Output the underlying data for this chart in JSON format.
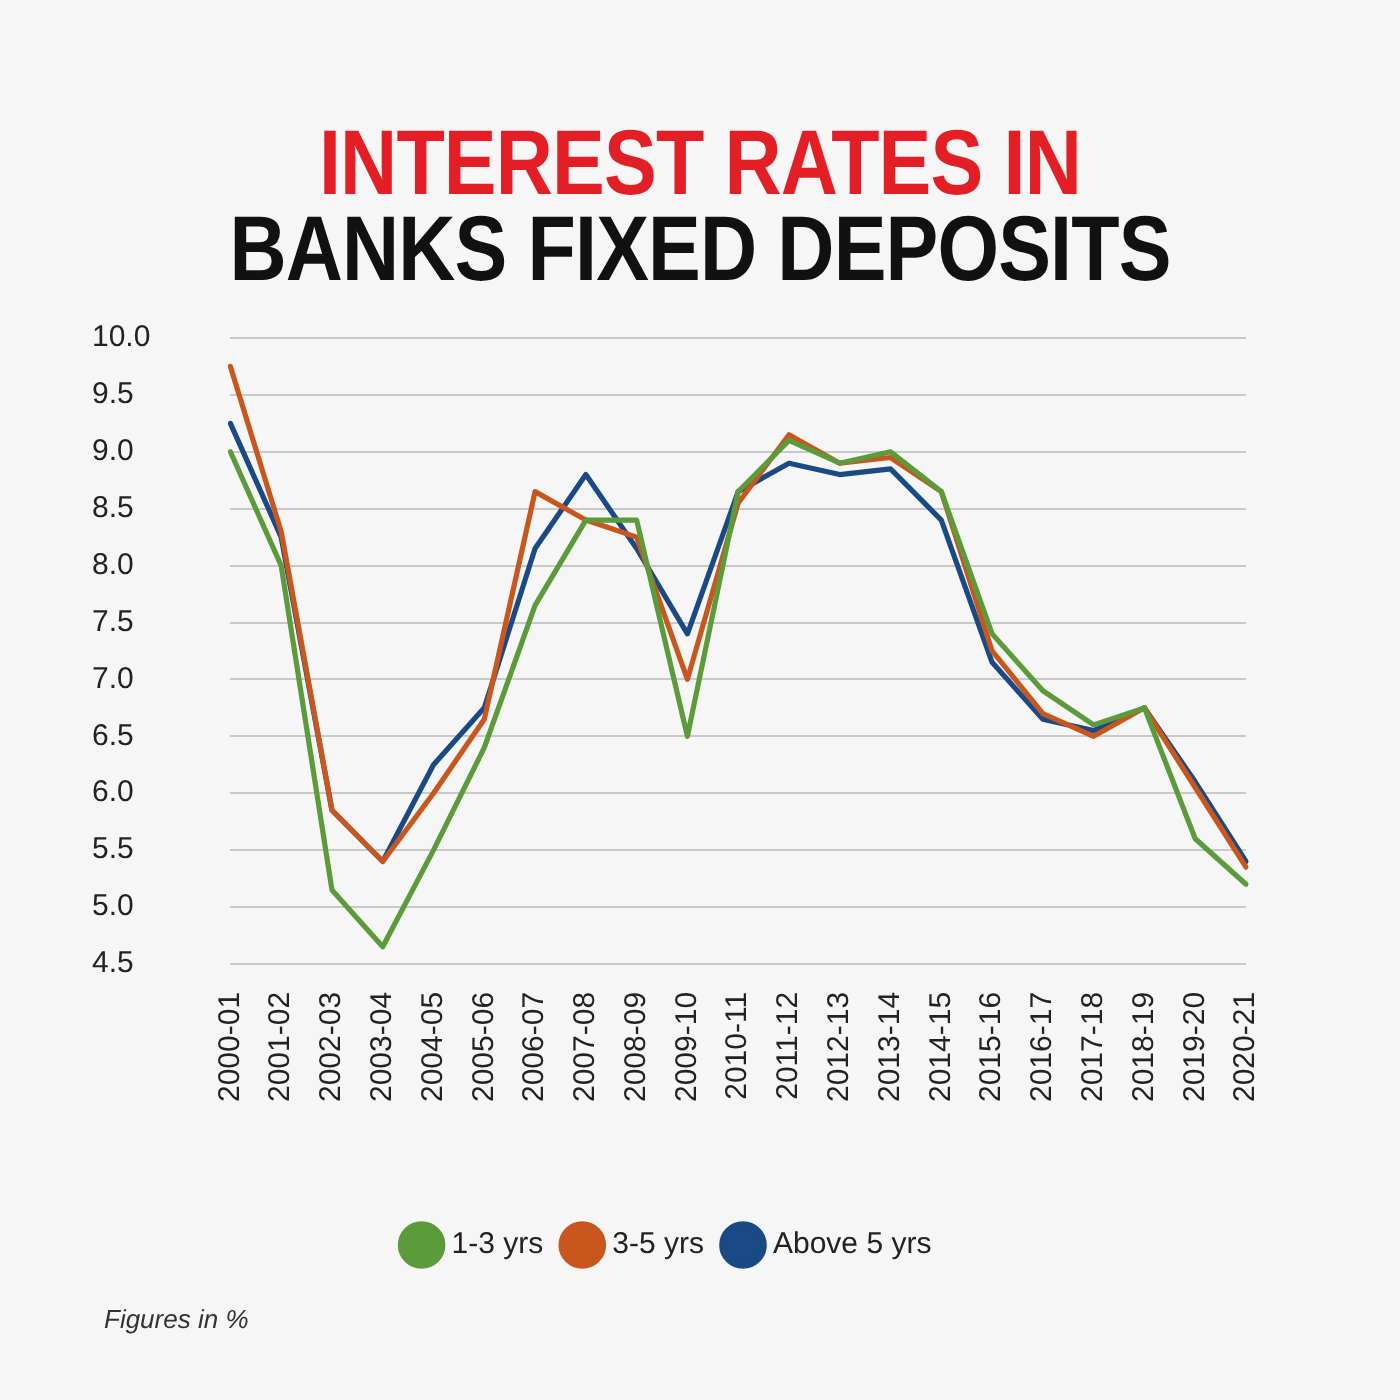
{
  "chart_data": {
    "type": "line",
    "title": "INTEREST RATES IN\nBANKS FIXED DEPOSITS",
    "categories": [
      "2000-01",
      "2001-02",
      "2002-03",
      "2003-04",
      "2004-05",
      "2005-06",
      "2006-07",
      "2007-08",
      "2008-09",
      "2009-10",
      "2010-11",
      "2011-12",
      "2012-13",
      "2013-14",
      "2014-15",
      "2015-16",
      "2016-17",
      "2017-18",
      "2018-19",
      "2019-20",
      "2020-21"
    ],
    "series": [
      {
        "name": "1-3 yrs",
        "color": "#5b9b3a",
        "values": [
          9.0,
          8.0,
          5.15,
          4.65,
          5.5,
          6.4,
          7.65,
          8.4,
          8.4,
          6.5,
          8.65,
          9.1,
          8.9,
          9.0,
          8.65,
          7.4,
          6.9,
          6.6,
          6.75,
          5.6,
          5.2
        ]
      },
      {
        "name": "3-5 yrs",
        "color": "#c8561d",
        "values": [
          9.75,
          8.3,
          5.85,
          5.4,
          6.0,
          6.65,
          8.65,
          8.4,
          8.25,
          7.0,
          8.55,
          9.15,
          8.9,
          8.95,
          8.65,
          7.25,
          6.7,
          6.5,
          6.75,
          6.05,
          5.35
        ]
      },
      {
        "name": "Above 5 yrs",
        "color": "#194a85",
        "values": [
          9.25,
          8.25,
          5.85,
          5.4,
          6.25,
          6.75,
          8.15,
          8.8,
          8.15,
          7.4,
          8.65,
          8.9,
          8.8,
          8.85,
          8.4,
          7.15,
          6.65,
          6.55,
          6.75,
          6.1,
          5.4
        ]
      }
    ],
    "ylim": [
      4.5,
      10
    ],
    "yticks": [
      4.5,
      {
        "value": 5,
        "label": "5.0"
      },
      5.5,
      {
        "value": 6,
        "label": "6.0"
      },
      6.5,
      {
        "value": 7,
        "label": "7.0"
      },
      7.5,
      {
        "value": 8,
        "label": "8.0"
      },
      8.5,
      {
        "value": 9,
        "label": "9.0"
      },
      9.5,
      {
        "value": 10,
        "label": "10.0"
      }
    ],
    "grid": "y",
    "legend": "bottom",
    "line_style": "solid",
    "annotations": [
      "Figures in %"
    ]
  }
}
